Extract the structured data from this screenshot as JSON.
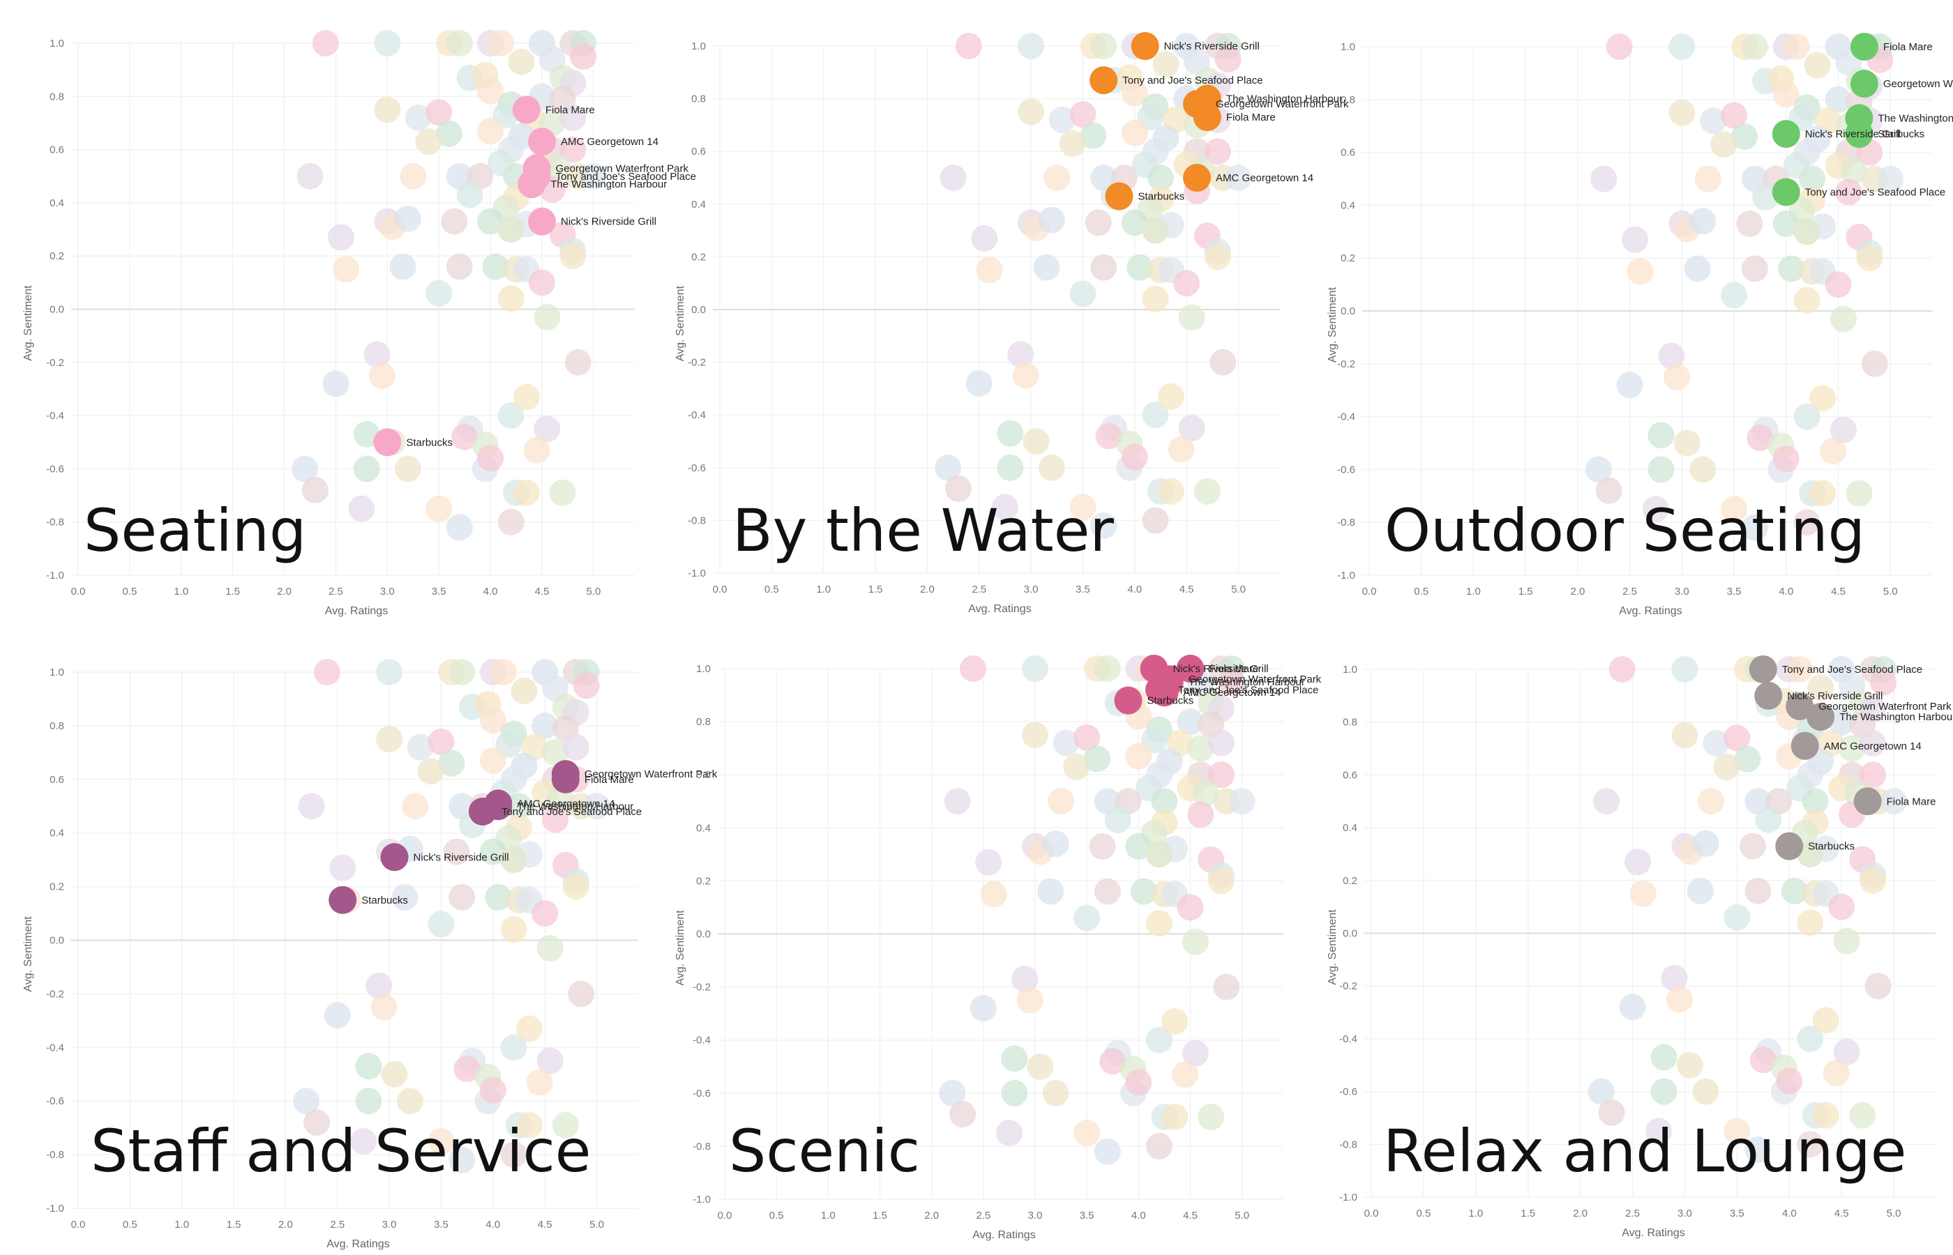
{
  "chart_data": [
    {
      "type": "scatter",
      "title": "Seating",
      "xlabel": "Avg. Ratings",
      "ylabel": "Avg. Sentiment",
      "xlim": [
        0,
        5.4
      ],
      "ylim": [
        -1.0,
        1.0
      ],
      "xticks": [
        "0.0",
        "0.5",
        "1.0",
        "1.5",
        "2.0",
        "2.5",
        "3.0",
        "3.5",
        "4.0",
        "4.5",
        "5.0"
      ],
      "yticks": [
        "-1.0",
        "-0.8",
        "-0.6",
        "-0.4",
        "-0.2",
        "0.0",
        "0.2",
        "0.4",
        "0.6",
        "0.8",
        "1.0"
      ],
      "highlight_color": "#f7a8c8",
      "highlighted": [
        {
          "name": "Fiola Mare",
          "x": 4.35,
          "y": 0.75
        },
        {
          "name": "AMC Georgetown 14",
          "x": 4.5,
          "y": 0.63
        },
        {
          "name": "Georgetown Waterfront Park",
          "x": 4.45,
          "y": 0.53
        },
        {
          "name": "Tony and Joe's Seafood Place",
          "x": 4.45,
          "y": 0.5
        },
        {
          "name": "The Washington Harbour",
          "x": 4.4,
          "y": 0.47
        },
        {
          "name": "Nick's Riverside Grill",
          "x": 4.5,
          "y": 0.33
        },
        {
          "name": "Starbucks",
          "x": 3.0,
          "y": -0.5
        }
      ]
    },
    {
      "type": "scatter",
      "title": "By the Water",
      "xlabel": "Avg. Ratings",
      "ylabel": "Avg. Sentiment",
      "xlim": [
        0,
        5.4
      ],
      "ylim": [
        -1.0,
        1.0
      ],
      "xticks": [
        "0.0",
        "0.5",
        "1.0",
        "1.5",
        "2.0",
        "2.5",
        "3.0",
        "3.5",
        "4.0",
        "4.5",
        "5.0"
      ],
      "yticks": [
        "-1.0",
        "-0.8",
        "-0.6",
        "-0.4",
        "-0.2",
        "0.0",
        "0.2",
        "0.4",
        "0.6",
        "0.8",
        "1.0"
      ],
      "highlight_color": "#f28a26",
      "highlighted": [
        {
          "name": "Nick's Riverside Grill",
          "x": 4.1,
          "y": 1.0
        },
        {
          "name": "Tony and Joe's Seafood Place",
          "x": 3.7,
          "y": 0.87
        },
        {
          "name": "The Washington Harbour",
          "x": 4.7,
          "y": 0.8
        },
        {
          "name": "Georgetown Waterfront Park",
          "x": 4.6,
          "y": 0.78
        },
        {
          "name": "Fiola Mare",
          "x": 4.7,
          "y": 0.73
        },
        {
          "name": "AMC Georgetown 14",
          "x": 4.6,
          "y": 0.5
        },
        {
          "name": "Starbucks",
          "x": 3.85,
          "y": 0.43
        }
      ]
    },
    {
      "type": "scatter",
      "title": "Outdoor Seating",
      "xlabel": "Avg. Ratings",
      "ylabel": "Avg. Sentiment",
      "xlim": [
        0,
        5.4
      ],
      "ylim": [
        -1.0,
        1.0
      ],
      "xticks": [
        "0.0",
        "0.5",
        "1.0",
        "1.5",
        "2.0",
        "2.5",
        "3.0",
        "3.5",
        "4.0",
        "4.5",
        "5.0"
      ],
      "yticks": [
        "-1.0",
        "-0.8",
        "-0.6",
        "-0.4",
        "-0.2",
        "0.0",
        "0.2",
        "0.4",
        "0.6",
        "0.8",
        "1.0"
      ],
      "highlight_color": "#6cc96a",
      "highlighted": [
        {
          "name": "Fiola Mare",
          "x": 4.75,
          "y": 1.0
        },
        {
          "name": "Georgetown Waterfront Park",
          "x": 4.75,
          "y": 0.86
        },
        {
          "name": "The Washington Harbour",
          "x": 4.7,
          "y": 0.73
        },
        {
          "name": "Nick's Riverside Grill",
          "x": 4.0,
          "y": 0.67
        },
        {
          "name": "Starbucks",
          "x": 4.7,
          "y": 0.67
        },
        {
          "name": "Tony and Joe's Seafood Place",
          "x": 4.0,
          "y": 0.45
        }
      ]
    },
    {
      "type": "scatter",
      "title": "Staff and Service",
      "xlabel": "Avg. Ratings",
      "ylabel": "Avg. Sentiment",
      "xlim": [
        0,
        5.4
      ],
      "ylim": [
        -1.0,
        1.0
      ],
      "xticks": [
        "0.0",
        "0.5",
        "1.0",
        "1.5",
        "2.0",
        "2.5",
        "3.0",
        "3.5",
        "4.0",
        "4.5",
        "5.0"
      ],
      "yticks": [
        "-1.0",
        "-0.8",
        "-0.6",
        "-0.4",
        "-0.2",
        "0.0",
        "0.2",
        "0.4",
        "0.6",
        "0.8",
        "1.0"
      ],
      "highlight_color": "#a3578a",
      "highlighted": [
        {
          "name": "Georgetown Waterfront Park",
          "x": 4.7,
          "y": 0.62
        },
        {
          "name": "Fiola Mare",
          "x": 4.7,
          "y": 0.6
        },
        {
          "name": "AMC Georgetown 14",
          "x": 4.05,
          "y": 0.51
        },
        {
          "name": "The Washington Harbour",
          "x": 4.05,
          "y": 0.5
        },
        {
          "name": "Tony and Joe's Seafood Place",
          "x": 3.9,
          "y": 0.48
        },
        {
          "name": "Nick's Riverside Grill",
          "x": 3.05,
          "y": 0.31
        },
        {
          "name": "Starbucks",
          "x": 2.55,
          "y": 0.15
        }
      ]
    },
    {
      "type": "scatter",
      "title": "Scenic",
      "xlabel": "Avg. Ratings",
      "ylabel": "Avg. Sentiment",
      "xlim": [
        0,
        5.4
      ],
      "ylim": [
        -1.0,
        1.0
      ],
      "xticks": [
        "0.0",
        "0.5",
        "1.0",
        "1.5",
        "2.0",
        "2.5",
        "3.0",
        "3.5",
        "4.0",
        "4.5",
        "5.0"
      ],
      "yticks": [
        "-1.0",
        "-0.8",
        "-0.6",
        "-0.4",
        "-0.2",
        "0.0",
        "0.2",
        "0.4",
        "0.6",
        "0.8",
        "1.0"
      ],
      "highlight_color": "#d55c8a",
      "highlighted": [
        {
          "name": "Nick's Riverside Grill",
          "x": 4.15,
          "y": 1.0
        },
        {
          "name": "Fiola Mare",
          "x": 4.5,
          "y": 1.0
        },
        {
          "name": "Georgetown Waterfront Park",
          "x": 4.3,
          "y": 0.96
        },
        {
          "name": "The Washington Harbour",
          "x": 4.3,
          "y": 0.95
        },
        {
          "name": "Tony and Joe's Seafood Place",
          "x": 4.2,
          "y": 0.92
        },
        {
          "name": "AMC Georgetown 14",
          "x": 4.25,
          "y": 0.91
        },
        {
          "name": "Starbucks",
          "x": 3.9,
          "y": 0.88
        }
      ]
    },
    {
      "type": "scatter",
      "title": "Relax and Lounge",
      "xlabel": "Avg. Ratings",
      "ylabel": "Avg. Sentiment",
      "xlim": [
        0,
        5.4
      ],
      "ylim": [
        -1.0,
        1.0
      ],
      "xticks": [
        "0.0",
        "0.5",
        "1.0",
        "1.5",
        "2.0",
        "2.5",
        "3.0",
        "3.5",
        "4.0",
        "4.5",
        "5.0"
      ],
      "yticks": [
        "-1.0",
        "-0.8",
        "-0.6",
        "-0.4",
        "-0.2",
        "0.0",
        "0.2",
        "0.4",
        "0.6",
        "0.8",
        "1.0"
      ],
      "highlight_color": "#a19a98",
      "highlighted": [
        {
          "name": "Tony and Joe's Seafood Place",
          "x": 3.75,
          "y": 1.0
        },
        {
          "name": "Nick's Riverside Grill",
          "x": 3.8,
          "y": 0.9
        },
        {
          "name": "Georgetown Waterfront Park",
          "x": 4.1,
          "y": 0.86
        },
        {
          "name": "The Washington Harbour",
          "x": 4.3,
          "y": 0.82
        },
        {
          "name": "AMC Georgetown 14",
          "x": 4.15,
          "y": 0.71
        },
        {
          "name": "Fiola Mare",
          "x": 4.75,
          "y": 0.5
        },
        {
          "name": "Starbucks",
          "x": 4.0,
          "y": 0.33
        }
      ]
    }
  ],
  "background_points": [
    [
      2.4,
      1.0
    ],
    [
      3.0,
      1.0
    ],
    [
      3.6,
      1.0
    ],
    [
      3.7,
      1.0
    ],
    [
      4.0,
      1.0
    ],
    [
      4.1,
      1.0
    ],
    [
      4.5,
      1.0
    ],
    [
      4.8,
      1.0
    ],
    [
      4.9,
      1.0
    ],
    [
      4.3,
      0.93
    ],
    [
      4.6,
      0.94
    ],
    [
      4.9,
      0.95
    ],
    [
      3.8,
      0.87
    ],
    [
      3.95,
      0.88
    ],
    [
      4.7,
      0.87
    ],
    [
      4.8,
      0.85
    ],
    [
      4.0,
      0.82
    ],
    [
      4.5,
      0.8
    ],
    [
      4.7,
      0.79
    ],
    [
      4.2,
      0.77
    ],
    [
      3.0,
      0.75
    ],
    [
      3.3,
      0.72
    ],
    [
      3.5,
      0.74
    ],
    [
      4.15,
      0.73
    ],
    [
      4.4,
      0.72
    ],
    [
      4.6,
      0.7
    ],
    [
      4.8,
      0.72
    ],
    [
      4.0,
      0.67
    ],
    [
      4.3,
      0.65
    ],
    [
      4.6,
      0.6
    ],
    [
      3.6,
      0.66
    ],
    [
      3.4,
      0.63
    ],
    [
      4.2,
      0.6
    ],
    [
      4.8,
      0.6
    ],
    [
      4.1,
      0.55
    ],
    [
      4.5,
      0.55
    ],
    [
      4.65,
      0.53
    ],
    [
      2.25,
      0.5
    ],
    [
      3.25,
      0.5
    ],
    [
      3.7,
      0.5
    ],
    [
      3.9,
      0.5
    ],
    [
      4.25,
      0.5
    ],
    [
      4.85,
      0.5
    ],
    [
      5.0,
      0.5
    ],
    [
      4.6,
      0.45
    ],
    [
      3.8,
      0.43
    ],
    [
      4.25,
      0.42
    ],
    [
      4.15,
      0.38
    ],
    [
      3.0,
      0.33
    ],
    [
      3.05,
      0.31
    ],
    [
      3.2,
      0.34
    ],
    [
      3.65,
      0.33
    ],
    [
      4.0,
      0.33
    ],
    [
      4.2,
      0.3
    ],
    [
      4.35,
      0.32
    ],
    [
      4.7,
      0.28
    ],
    [
      4.8,
      0.22
    ],
    [
      4.8,
      0.2
    ],
    [
      4.2,
      0.3
    ],
    [
      2.55,
      0.27
    ],
    [
      2.6,
      0.15
    ],
    [
      3.15,
      0.16
    ],
    [
      3.7,
      0.16
    ],
    [
      4.05,
      0.16
    ],
    [
      4.25,
      0.15
    ],
    [
      4.35,
      0.15
    ],
    [
      4.5,
      0.1
    ],
    [
      3.5,
      0.06
    ],
    [
      4.2,
      0.04
    ],
    [
      4.55,
      -0.03
    ],
    [
      2.9,
      -0.17
    ],
    [
      2.95,
      -0.25
    ],
    [
      2.5,
      -0.28
    ],
    [
      4.85,
      -0.2
    ],
    [
      2.8,
      -0.47
    ],
    [
      3.05,
      -0.5
    ],
    [
      3.8,
      -0.45
    ],
    [
      3.75,
      -0.48
    ],
    [
      4.2,
      -0.4
    ],
    [
      4.35,
      -0.33
    ],
    [
      3.95,
      -0.51
    ],
    [
      4.55,
      -0.45
    ],
    [
      4.45,
      -0.53
    ],
    [
      2.2,
      -0.6
    ],
    [
      2.3,
      -0.68
    ],
    [
      2.8,
      -0.6
    ],
    [
      3.2,
      -0.6
    ],
    [
      3.95,
      -0.6
    ],
    [
      4.0,
      -0.56
    ],
    [
      4.25,
      -0.69
    ],
    [
      4.35,
      -0.69
    ],
    [
      4.7,
      -0.69
    ],
    [
      2.75,
      -0.75
    ],
    [
      3.5,
      -0.75
    ],
    [
      3.7,
      -0.82
    ],
    [
      4.2,
      -0.8
    ]
  ]
}
